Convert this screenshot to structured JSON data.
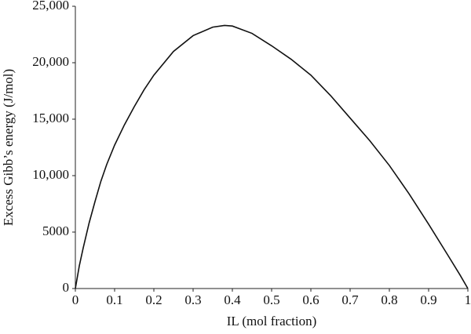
{
  "chart_data": {
    "type": "line",
    "x_label": "IL (mol fraction)",
    "y_label": "Excess Gibb’s energy (J/mol)",
    "x": [
      0,
      0.01,
      0.02,
      0.035,
      0.05,
      0.065,
      0.08,
      0.1,
      0.125,
      0.15,
      0.175,
      0.2,
      0.25,
      0.3,
      0.35,
      0.38,
      0.4,
      0.45,
      0.5,
      0.55,
      0.6,
      0.65,
      0.7,
      0.75,
      0.8,
      0.85,
      0.9,
      0.95,
      0.98,
      1.0
    ],
    "series": [
      {
        "name": "Excess Gibb’s energy",
        "color": "#111111",
        "values": [
          0,
          2000,
          3600,
          5800,
          7700,
          9500,
          11000,
          12700,
          14500,
          16100,
          17600,
          18900,
          21000,
          22400,
          23150,
          23300,
          23250,
          22600,
          21500,
          20300,
          18900,
          17100,
          15100,
          13100,
          10900,
          8400,
          5700,
          2900,
          1200,
          0
        ]
      }
    ],
    "xlim": [
      0,
      1
    ],
    "xticks": [
      0,
      0.1,
      0.2,
      0.3,
      0.4,
      0.5,
      0.6,
      0.7,
      0.8,
      0.9,
      1
    ],
    "ylim": [
      0,
      25000
    ],
    "yticks": [
      0,
      5000,
      {
        "value": 10000,
        "label": "10,000"
      },
      {
        "value": 15000,
        "label": "15,000"
      },
      {
        "value": 20000,
        "label": "20,000"
      },
      {
        "value": 25000,
        "label": "25,000"
      }
    ]
  }
}
